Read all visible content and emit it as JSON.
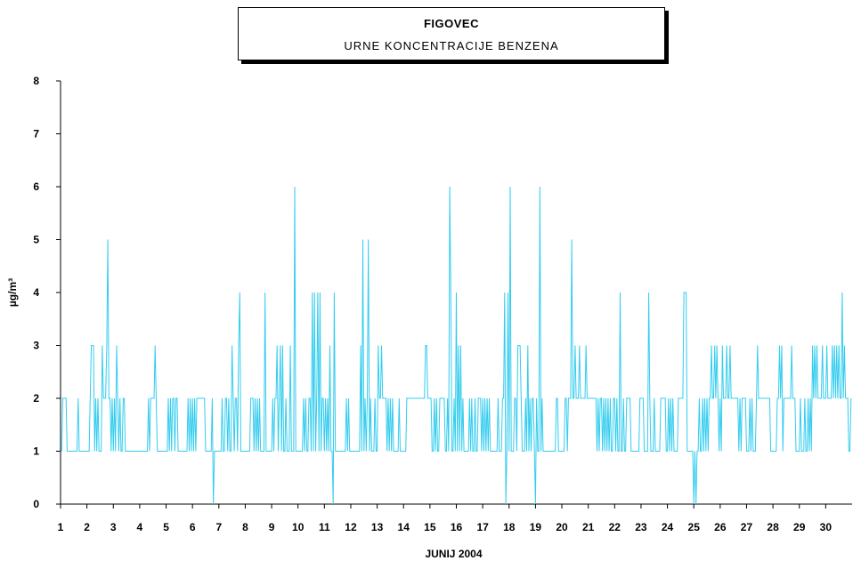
{
  "chart_data": {
    "type": "line",
    "title": "FIGOVEC",
    "subtitle": "URNE KONCENTRACIJE BENZENA",
    "xlabel": "JUNIJ 2004",
    "ylabel": "µg/m³",
    "ylim": [
      0,
      8
    ],
    "yticks": [
      "0",
      "1",
      "2",
      "3",
      "4",
      "5",
      "6",
      "7",
      "8"
    ],
    "xticks": [
      "1",
      "2",
      "3",
      "4",
      "5",
      "6",
      "7",
      "8",
      "9",
      "10",
      "11",
      "12",
      "13",
      "14",
      "15",
      "16",
      "17",
      "18",
      "19",
      "20",
      "21",
      "22",
      "23",
      "24",
      "25",
      "26",
      "27",
      "28",
      "29",
      "30"
    ],
    "grid": false,
    "line_color": "#33ccee",
    "series": [
      {
        "values": [
          [
            1,
            1,
            2,
            2,
            2,
            2,
            1,
            1,
            1,
            1,
            1,
            1,
            1,
            1,
            1,
            1,
            2,
            1,
            1,
            1,
            1,
            1,
            1,
            1
          ],
          [
            1,
            1,
            1,
            2,
            3,
            3,
            3,
            1,
            2,
            1,
            2,
            1,
            1,
            1,
            3,
            2,
            2,
            2,
            3,
            5,
            2,
            2,
            1,
            2
          ],
          [
            1,
            2,
            1,
            3,
            2,
            1,
            2,
            1,
            1,
            2,
            2,
            1,
            1,
            1,
            1,
            1,
            1,
            1,
            1,
            1,
            1,
            1,
            1,
            1
          ],
          [
            1,
            1,
            1,
            1,
            1,
            1,
            1,
            1,
            2,
            1,
            2,
            2,
            2,
            2,
            3,
            2,
            1,
            1,
            1,
            1,
            1,
            1,
            1,
            1
          ],
          [
            1,
            1,
            2,
            1,
            2,
            1,
            2,
            2,
            1,
            2,
            2,
            1,
            1,
            1,
            1,
            1,
            1,
            1,
            1,
            1,
            2,
            1,
            2,
            1
          ],
          [
            2,
            1,
            2,
            1,
            2,
            2,
            2,
            2,
            2,
            2,
            2,
            2,
            1,
            1,
            1,
            1,
            1,
            1,
            2,
            0,
            1,
            1,
            1,
            1
          ],
          [
            1,
            1,
            1,
            2,
            1,
            1,
            2,
            2,
            1,
            2,
            1,
            1,
            3,
            2,
            1,
            2,
            2,
            1,
            3,
            4,
            1,
            1,
            1,
            1
          ],
          [
            1,
            1,
            1,
            1,
            1,
            2,
            2,
            2,
            1,
            2,
            1,
            2,
            1,
            2,
            1,
            1,
            1,
            1,
            4,
            1,
            1,
            1,
            1,
            1
          ],
          [
            1,
            2,
            1,
            2,
            2,
            3,
            1,
            2,
            3,
            1,
            3,
            1,
            1,
            2,
            1,
            1,
            1,
            3,
            1,
            1,
            1,
            6,
            1,
            1
          ],
          [
            1,
            1,
            1,
            1,
            1,
            2,
            1,
            2,
            1,
            1,
            2,
            2,
            1,
            4,
            1,
            4,
            1,
            2,
            4,
            1,
            4,
            1,
            2,
            2
          ],
          [
            1,
            2,
            1,
            2,
            1,
            3,
            1,
            1,
            0,
            4,
            1,
            1,
            1,
            1,
            1,
            1,
            1,
            1,
            1,
            1,
            2,
            1,
            2,
            1
          ],
          [
            1,
            1,
            1,
            1,
            1,
            1,
            1,
            1,
            1,
            3,
            1,
            5,
            1,
            2,
            1,
            2,
            5,
            1,
            2,
            1,
            1,
            1,
            2,
            1
          ],
          [
            1,
            3,
            2,
            2,
            3,
            2,
            2,
            2,
            2,
            1,
            2,
            1,
            2,
            1,
            2,
            1,
            1,
            1,
            1,
            1,
            2,
            1,
            1,
            1
          ],
          [
            1,
            1,
            1,
            2,
            2,
            2,
            2,
            2,
            2,
            2,
            2,
            2,
            2,
            2,
            2,
            2,
            2,
            2,
            2,
            2,
            3,
            3,
            2,
            2
          ],
          [
            2,
            2,
            1,
            1,
            2,
            1,
            2,
            1,
            1,
            2,
            2,
            2,
            2,
            2,
            1,
            1,
            2,
            1,
            6,
            4,
            1,
            1,
            2,
            1
          ],
          [
            4,
            1,
            3,
            1,
            3,
            1,
            2,
            1,
            1,
            1,
            1,
            1,
            2,
            1,
            2,
            1,
            1,
            2,
            1,
            1,
            2,
            2,
            2,
            1
          ],
          [
            2,
            1,
            2,
            1,
            2,
            1,
            2,
            1,
            1,
            1,
            1,
            1,
            1,
            1,
            2,
            1,
            1,
            1,
            2,
            2,
            4,
            0,
            1,
            4
          ],
          [
            1,
            6,
            1,
            1,
            1,
            2,
            2,
            1,
            3,
            3,
            3,
            2,
            1,
            1,
            1,
            2,
            1,
            3,
            1,
            2,
            1,
            2,
            2,
            1
          ],
          [
            0,
            2,
            1,
            1,
            6,
            1,
            2,
            1,
            1,
            1,
            1,
            1,
            1,
            1,
            1,
            1,
            1,
            1,
            1,
            2,
            2,
            1,
            1,
            1
          ],
          [
            1,
            1,
            1,
            2,
            2,
            1,
            2,
            2,
            2,
            5,
            2,
            2,
            3,
            2,
            2,
            2,
            3,
            2,
            2,
            2,
            2,
            2,
            3,
            2
          ],
          [
            2,
            2,
            2,
            2,
            2,
            2,
            2,
            2,
            1,
            2,
            1,
            2,
            2,
            1,
            2,
            1,
            2,
            1,
            2,
            1,
            2,
            1,
            1,
            2
          ],
          [
            2,
            1,
            2,
            1,
            1,
            4,
            1,
            1,
            2,
            1,
            1,
            2,
            2,
            2,
            2,
            1,
            1,
            1,
            1,
            1,
            1,
            1,
            1,
            2
          ],
          [
            2,
            2,
            2,
            1,
            1,
            1,
            1,
            4,
            2,
            1,
            1,
            1,
            2,
            1,
            1,
            1,
            1,
            1,
            2,
            2,
            2,
            2,
            2,
            1
          ],
          [
            1,
            2,
            1,
            2,
            1,
            2,
            1,
            1,
            1,
            1,
            2,
            2,
            2,
            2,
            2,
            4,
            4,
            4,
            1,
            1,
            1,
            1,
            1,
            1
          ],
          [
            0,
            1,
            0,
            1,
            1,
            2,
            1,
            1,
            2,
            1,
            2,
            1,
            2,
            1,
            2,
            2,
            3,
            2,
            2,
            3,
            2,
            3,
            2,
            1
          ],
          [
            2,
            1,
            3,
            2,
            2,
            2,
            3,
            2,
            2,
            3,
            2,
            2,
            2,
            2,
            2,
            2,
            2,
            1,
            2,
            1,
            2,
            2,
            2,
            2
          ],
          [
            1,
            1,
            1,
            2,
            1,
            2,
            1,
            1,
            1,
            2,
            3,
            2,
            2,
            2,
            2,
            2,
            2,
            2,
            2,
            2,
            2,
            2,
            1,
            1
          ],
          [
            1,
            1,
            1,
            1,
            2,
            2,
            3,
            2,
            3,
            1,
            2,
            2,
            2,
            2,
            2,
            2,
            2,
            3,
            2,
            2,
            2,
            1,
            1,
            1
          ],
          [
            1,
            2,
            1,
            1,
            1,
            2,
            1,
            1,
            2,
            1,
            2,
            1,
            3,
            2,
            3,
            2,
            3,
            2,
            2,
            2,
            2,
            3,
            2,
            2
          ],
          [
            2,
            3,
            2,
            2,
            2,
            2,
            3,
            2,
            3,
            2,
            3,
            2,
            3,
            2,
            2,
            4,
            2,
            3,
            2,
            2,
            2,
            1,
            1,
            2
          ]
        ]
      }
    ]
  }
}
